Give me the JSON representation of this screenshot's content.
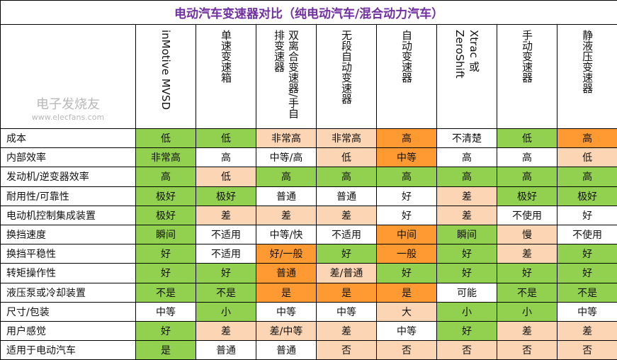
{
  "title": "电动汽车变速器对比（纯电动汽车/混合动力汽车）",
  "colors": {
    "g": "#92d050",
    "p": "#fcd5b4",
    "o": "#ff9a33",
    "w": "#ffffff"
  },
  "columns": [
    "inMotive MVSD",
    "单速变速箱",
    "双离合变速器/手自排变速器",
    "无段自动变速器",
    "自动变速器",
    "Xtrac 或 ZeroShift",
    "手动变速器",
    "静液压变速器"
  ],
  "rows": [
    {
      "label": "成本",
      "cells": [
        [
          "低",
          "g"
        ],
        [
          "低",
          "g"
        ],
        [
          "非常高",
          "p"
        ],
        [
          "非常高",
          "p"
        ],
        [
          "高",
          "o"
        ],
        [
          "不清楚",
          "w"
        ],
        [
          "低",
          "g"
        ],
        [
          "高",
          "o"
        ]
      ]
    },
    {
      "label": "内部效率",
      "cells": [
        [
          "非常高",
          "g"
        ],
        [
          "高",
          "w"
        ],
        [
          "中等/高",
          "w"
        ],
        [
          "低",
          "p"
        ],
        [
          "中等",
          "o"
        ],
        [
          "高",
          "w"
        ],
        [
          "高",
          "w"
        ],
        [
          "低",
          "p"
        ]
      ]
    },
    {
      "label": "发动机/逆变器效率",
      "cells": [
        [
          "高",
          "g"
        ],
        [
          "低",
          "p"
        ],
        [
          "高",
          "g"
        ],
        [
          "高",
          "g"
        ],
        [
          "高",
          "g"
        ],
        [
          "高",
          "g"
        ],
        [
          "高",
          "g"
        ],
        [
          "高",
          "g"
        ]
      ]
    },
    {
      "label": "耐用性/可靠性",
      "cells": [
        [
          "极好",
          "g"
        ],
        [
          "极好",
          "g"
        ],
        [
          "普通",
          "w"
        ],
        [
          "普通",
          "w"
        ],
        [
          "好",
          "w"
        ],
        [
          "差",
          "p"
        ],
        [
          "极好",
          "g"
        ],
        [
          "极好",
          "g"
        ]
      ]
    },
    {
      "label": "电动机控制集成装置",
      "cells": [
        [
          "极好",
          "g"
        ],
        [
          "差",
          "p"
        ],
        [
          "差",
          "p"
        ],
        [
          "差",
          "p"
        ],
        [
          "好",
          "w"
        ],
        [
          "差",
          "p"
        ],
        [
          "不使用",
          "w"
        ],
        [
          "好",
          "w"
        ]
      ]
    },
    {
      "label": "换挡速度",
      "cells": [
        [
          "瞬间",
          "g"
        ],
        [
          "不适用",
          "w"
        ],
        [
          "中等/快",
          "w"
        ],
        [
          "不适用",
          "w"
        ],
        [
          "中间",
          "o"
        ],
        [
          "瞬间",
          "g"
        ],
        [
          "慢",
          "p"
        ],
        [
          "不使用",
          "w"
        ]
      ]
    },
    {
      "label": "换挡平稳性",
      "cells": [
        [
          "好",
          "g"
        ],
        [
          "不适用",
          "w"
        ],
        [
          "好/一般",
          "o"
        ],
        [
          "好",
          "g"
        ],
        [
          "一般",
          "o"
        ],
        [
          "好",
          "g"
        ],
        [
          "差",
          "p"
        ],
        [
          "好",
          "g"
        ]
      ]
    },
    {
      "label": "转矩操作性",
      "cells": [
        [
          "好",
          "g"
        ],
        [
          "好",
          "g"
        ],
        [
          "普通",
          "o"
        ],
        [
          "差/普通",
          "p"
        ],
        [
          "好",
          "g"
        ],
        [
          "好",
          "g"
        ],
        [
          "好",
          "g"
        ],
        [
          "好",
          "g"
        ]
      ]
    },
    {
      "label": "液压泵或冷却装置",
      "cells": [
        [
          "不是",
          "g"
        ],
        [
          "不是",
          "g"
        ],
        [
          "是",
          "o"
        ],
        [
          "是",
          "o"
        ],
        [
          "是",
          "o"
        ],
        [
          "可能",
          "w"
        ],
        [
          "不是",
          "g"
        ],
        [
          "不是",
          "g"
        ]
      ]
    },
    {
      "label": "尺寸/包装",
      "cells": [
        [
          "中等",
          "w"
        ],
        [
          "小",
          "g"
        ],
        [
          "中等",
          "w"
        ],
        [
          "中等",
          "w"
        ],
        [
          "大",
          "p"
        ],
        [
          "小",
          "g"
        ],
        [
          "小",
          "g"
        ],
        [
          "中等",
          "w"
        ]
      ]
    },
    {
      "label": "用户感觉",
      "cells": [
        [
          "好",
          "g"
        ],
        [
          "差",
          "p"
        ],
        [
          "差/中等",
          "p"
        ],
        [
          "差",
          "p"
        ],
        [
          "中等",
          "w"
        ],
        [
          "好",
          "g"
        ],
        [
          "差",
          "p"
        ],
        [
          "差",
          "p"
        ]
      ]
    },
    {
      "label": "适用于电动汽车",
      "cells": [
        [
          "是",
          "g"
        ],
        [
          "普通",
          "w"
        ],
        [
          "普通",
          "w"
        ],
        [
          "否",
          "p"
        ],
        [
          "否",
          "p"
        ],
        [
          "否",
          "p"
        ],
        [
          "否",
          "p"
        ],
        [
          "否",
          "p"
        ]
      ]
    }
  ],
  "watermark": {
    "text": "电子发烧友",
    "url": "www.elecfans.com"
  }
}
